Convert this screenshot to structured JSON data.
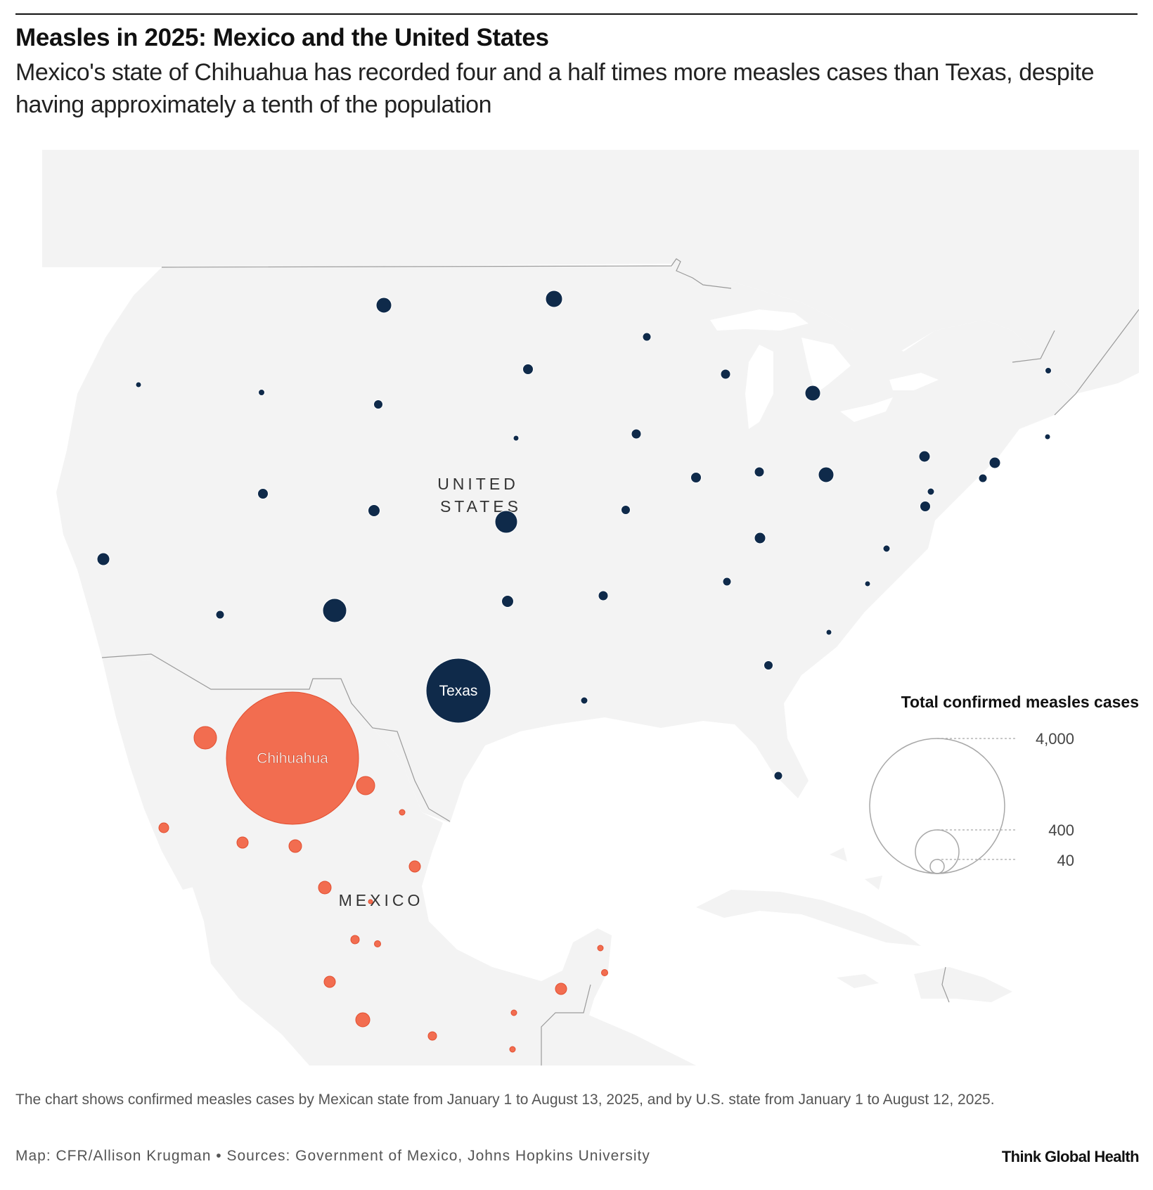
{
  "header": {
    "title": "Measles in 2025: Mexico and the United States",
    "subtitle": "Mexico's state of Chihuahua has recorded four and a half times more measles cases than Texas, despite having approximately a tenth of the population"
  },
  "map": {
    "country_labels": {
      "us_line1": "UNITED",
      "us_line2": "STATES",
      "mexico": "MEXICO"
    },
    "bubble_labels": {
      "texas": "Texas",
      "chihuahua": "Chihuahua"
    },
    "colors": {
      "land": "#f3f3f3",
      "border": "#9a9a9a",
      "us_bubble": "#0f2a4a",
      "mexico_bubble": "#f26d50",
      "legend_stroke": "#a8a8a8"
    }
  },
  "legend": {
    "title": "Total confirmed measles cases",
    "values": [
      "4,000",
      "400",
      "40"
    ]
  },
  "footer": {
    "note": "The chart shows confirmed measles cases by Mexican state from January 1 to August 13, 2025, and by U.S. state from January 1 to August 12, 2025.",
    "source": "Map: CFR/Allison Krugman • Sources: Government of Mexico, Johns Hopkins University",
    "logo": "Think Global Health"
  }
}
